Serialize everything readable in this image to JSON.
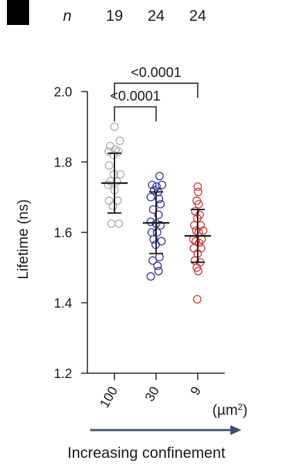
{
  "chart_data": {
    "type": "scatter",
    "subtype": "dot-plot with mean and SD",
    "n_header": {
      "label": "n",
      "values": [
        "19",
        "24",
        "24"
      ]
    },
    "ylabel": "Lifetime (ns)",
    "ylim": [
      1.2,
      2.0
    ],
    "yticks": [
      {
        "value": 2.0,
        "label": "2.0"
      },
      {
        "value": 1.8,
        "label": "1.8"
      },
      {
        "value": 1.6,
        "label": "1.6"
      },
      {
        "value": 1.4,
        "label": "1.4"
      },
      {
        "value": 1.2,
        "label": "1.2"
      }
    ],
    "categories": [
      "100",
      "30",
      "9"
    ],
    "x_unit": "(µm²)",
    "x_unit_base": "(µm",
    "x_unit_sup": "2",
    "x_unit_close": ")",
    "footer": "Increasing confinement",
    "grid": false,
    "series": [
      {
        "category": "100",
        "color": "#a8a8a8",
        "mean": 1.74,
        "sd_low": 1.655,
        "sd_high": 1.825,
        "points": [
          {
            "dx": 0.0,
            "y": 1.9
          },
          {
            "dx": 0.55,
            "y": 1.86
          },
          {
            "dx": -0.45,
            "y": 1.845
          },
          {
            "dx": -0.6,
            "y": 1.83
          },
          {
            "dx": -0.1,
            "y": 1.82
          },
          {
            "dx": 0.1,
            "y": 1.835
          },
          {
            "dx": 0.4,
            "y": 1.83
          },
          {
            "dx": -0.55,
            "y": 1.79
          },
          {
            "dx": -0.05,
            "y": 1.765
          },
          {
            "dx": 0.6,
            "y": 1.765
          },
          {
            "dx": -0.4,
            "y": 1.745
          },
          {
            "dx": 0.25,
            "y": 1.745
          },
          {
            "dx": -0.65,
            "y": 1.735
          },
          {
            "dx": 0.0,
            "y": 1.72
          },
          {
            "dx": -0.55,
            "y": 1.69
          },
          {
            "dx": 0.3,
            "y": 1.69
          },
          {
            "dx": -0.15,
            "y": 1.675
          },
          {
            "dx": -0.3,
            "y": 1.625
          },
          {
            "dx": 0.45,
            "y": 1.625
          }
        ]
      },
      {
        "category": "30",
        "color": "#2a2a9a",
        "mean": 1.627,
        "sd_low": 1.54,
        "sd_high": 1.715,
        "points": [
          {
            "dx": 0.35,
            "y": 1.76
          },
          {
            "dx": -0.4,
            "y": 1.735
          },
          {
            "dx": 0.05,
            "y": 1.73
          },
          {
            "dx": 0.6,
            "y": 1.735
          },
          {
            "dx": -0.2,
            "y": 1.72
          },
          {
            "dx": 0.2,
            "y": 1.715
          },
          {
            "dx": -0.55,
            "y": 1.7
          },
          {
            "dx": 0.3,
            "y": 1.695
          },
          {
            "dx": 0.45,
            "y": 1.68
          },
          {
            "dx": -0.3,
            "y": 1.665
          },
          {
            "dx": 0.25,
            "y": 1.65
          },
          {
            "dx": -0.55,
            "y": 1.63
          },
          {
            "dx": 0.0,
            "y": 1.625
          },
          {
            "dx": 0.45,
            "y": 1.62
          },
          {
            "dx": -0.45,
            "y": 1.6
          },
          {
            "dx": 0.1,
            "y": 1.6
          },
          {
            "dx": -0.25,
            "y": 1.58
          },
          {
            "dx": 0.55,
            "y": 1.575
          },
          {
            "dx": -0.05,
            "y": 1.565
          },
          {
            "dx": 0.35,
            "y": 1.53
          },
          {
            "dx": -0.35,
            "y": 1.52
          },
          {
            "dx": 0.15,
            "y": 1.505
          },
          {
            "dx": -0.55,
            "y": 1.475
          },
          {
            "dx": 0.25,
            "y": 1.49
          }
        ]
      },
      {
        "category": "9",
        "color": "#c53030",
        "mean": 1.59,
        "sd_low": 1.515,
        "sd_high": 1.665,
        "points": [
          {
            "dx": 0.0,
            "y": 1.73
          },
          {
            "dx": 0.05,
            "y": 1.715
          },
          {
            "dx": -0.1,
            "y": 1.69
          },
          {
            "dx": 0.1,
            "y": 1.68
          },
          {
            "dx": -0.25,
            "y": 1.66
          },
          {
            "dx": 0.2,
            "y": 1.65
          },
          {
            "dx": -0.05,
            "y": 1.64
          },
          {
            "dx": -0.35,
            "y": 1.62
          },
          {
            "dx": 0.3,
            "y": 1.62
          },
          {
            "dx": 0.55,
            "y": 1.605
          },
          {
            "dx": -0.15,
            "y": 1.605
          },
          {
            "dx": 0.1,
            "y": 1.6
          },
          {
            "dx": -0.45,
            "y": 1.58
          },
          {
            "dx": 0.4,
            "y": 1.58
          },
          {
            "dx": -0.2,
            "y": 1.575
          },
          {
            "dx": 0.15,
            "y": 1.57
          },
          {
            "dx": -0.4,
            "y": 1.555
          },
          {
            "dx": 0.35,
            "y": 1.555
          },
          {
            "dx": 0.0,
            "y": 1.54
          },
          {
            "dx": -0.3,
            "y": 1.52
          },
          {
            "dx": 0.25,
            "y": 1.515
          },
          {
            "dx": -0.1,
            "y": 1.5
          },
          {
            "dx": 0.05,
            "y": 1.49
          },
          {
            "dx": -0.05,
            "y": 1.41
          }
        ]
      }
    ],
    "significance": [
      {
        "from": "100",
        "to": "30",
        "label": "<0.0001",
        "level": 2.0
      },
      {
        "from": "100",
        "to": "9",
        "label": "<0.0001",
        "level": 2.0671
      }
    ],
    "colors": {
      "axis": "#1a1a1a",
      "arrow": "#3d5066",
      "panel_marker": "#000000"
    }
  }
}
